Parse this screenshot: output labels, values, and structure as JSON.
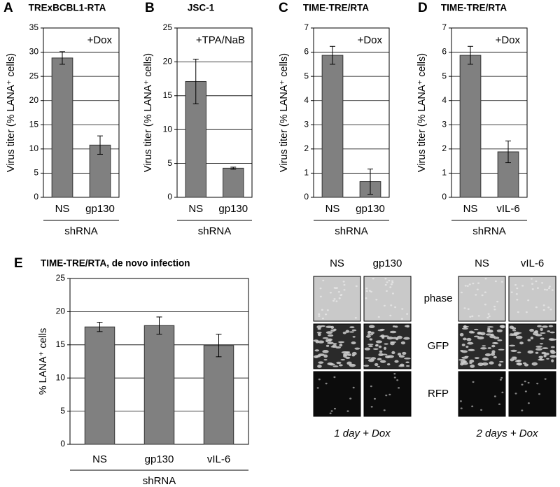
{
  "chart_data": [
    {
      "type": "bar",
      "panel_label": "A",
      "title": "TRExBCBL1-RTA",
      "annotation": "+Dox",
      "y_label": "Virus titer (% LANA⁺ cells)",
      "x_label": "shRNA",
      "categories": [
        "NS",
        "gp130"
      ],
      "values": [
        28.8,
        10.8
      ],
      "errors": [
        1.3,
        1.9
      ],
      "color": "#808080",
      "ylim": [
        0,
        35
      ],
      "yticks": [
        0,
        5,
        10,
        15,
        20,
        25,
        30,
        35
      ],
      "grid": true
    },
    {
      "type": "bar",
      "panel_label": "B",
      "title": "JSC-1",
      "annotation": "+TPA/NaB",
      "y_label": "Virus titer (% LANA⁺ cells)",
      "x_label": "shRNA",
      "categories": [
        "NS",
        "gp130"
      ],
      "values": [
        17.1,
        4.3
      ],
      "errors": [
        3.3,
        0.15
      ],
      "color": "#808080",
      "ylim": [
        0,
        25
      ],
      "yticks": [
        0,
        5,
        10,
        15,
        20,
        25
      ],
      "grid": true
    },
    {
      "type": "bar",
      "panel_label": "C",
      "title": "TIME-TRE/RTA",
      "annotation": "+Dox",
      "y_label": "Virus titer (% LANA⁺ cells)",
      "x_label": "shRNA",
      "categories": [
        "NS",
        "gp130"
      ],
      "values": [
        5.87,
        0.65
      ],
      "errors": [
        0.37,
        0.52
      ],
      "color": "#808080",
      "ylim": [
        0,
        7
      ],
      "yticks": [
        0,
        1,
        2,
        3,
        4,
        5,
        6,
        7
      ],
      "grid": true
    },
    {
      "type": "bar",
      "panel_label": "D",
      "title": "TIME-TRE/RTA",
      "annotation": "+Dox",
      "y_label": "Virus titer (% LANA⁺ cells)",
      "x_label": "shRNA",
      "categories": [
        "NS",
        "vIL-6"
      ],
      "values": [
        5.87,
        1.88
      ],
      "errors": [
        0.37,
        0.45
      ],
      "color": "#808080",
      "ylim": [
        0,
        7
      ],
      "yticks": [
        0,
        1,
        2,
        3,
        4,
        5,
        6,
        7
      ],
      "grid": true
    },
    {
      "type": "bar",
      "panel_label": "E",
      "title": "TIME-TRE/RTA, de novo infection",
      "y_label": "% LANA⁺ cells",
      "x_label": "shRNA",
      "categories": [
        "NS",
        "gp130",
        "vIL-6"
      ],
      "values": [
        17.7,
        17.9,
        14.9
      ],
      "errors": [
        0.7,
        1.3,
        1.7
      ],
      "color": "#808080",
      "ylim": [
        0,
        25
      ],
      "yticks": [
        0,
        5,
        10,
        15,
        20,
        25
      ],
      "grid": true
    }
  ],
  "image_panel": {
    "groups": [
      {
        "columns": [
          "NS",
          "gp130"
        ],
        "caption": "1 day + Dox"
      },
      {
        "columns": [
          "NS",
          "vIL-6"
        ],
        "caption": "2 days + Dox"
      }
    ],
    "rows": [
      "phase",
      "GFP",
      "RFP"
    ]
  }
}
